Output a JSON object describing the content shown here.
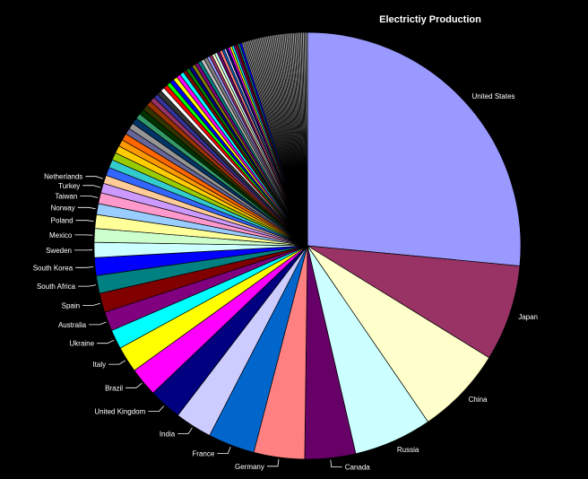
{
  "chart_data": {
    "type": "pie",
    "title": "Electrictiy Production",
    "start_angle_deg": 0,
    "direction": "clockwise",
    "slices": [
      {
        "name": "United States",
        "value": 25.5,
        "color": "#9999ff"
      },
      {
        "name": "Japan",
        "value": 7.0,
        "color": "#993366"
      },
      {
        "name": "China",
        "value": 6.4,
        "color": "#ffffcc"
      },
      {
        "name": "Russia",
        "value": 5.7,
        "color": "#ccffff"
      },
      {
        "name": "Canada",
        "value": 3.7,
        "color": "#660066"
      },
      {
        "name": "Germany",
        "value": 3.7,
        "color": "#ff8080"
      },
      {
        "name": "France",
        "value": 3.4,
        "color": "#0066cc"
      },
      {
        "name": "India",
        "value": 2.7,
        "color": "#ccccff"
      },
      {
        "name": "United Kingdom",
        "value": 2.4,
        "color": "#000080"
      },
      {
        "name": "Brazil",
        "value": 2.1,
        "color": "#ff00ff"
      },
      {
        "name": "Italy",
        "value": 1.9,
        "color": "#ffff00"
      },
      {
        "name": "Ukraine",
        "value": 1.4,
        "color": "#00ffff"
      },
      {
        "name": "Australia",
        "value": 1.4,
        "color": "#800080"
      },
      {
        "name": "Spain",
        "value": 1.4,
        "color": "#800000"
      },
      {
        "name": "South Africa",
        "value": 1.3,
        "color": "#008080"
      },
      {
        "name": "South Korea",
        "value": 1.3,
        "color": "#0000ff"
      },
      {
        "name": "Sweden",
        "value": 1.1,
        "color": "#ccffff"
      },
      {
        "name": "Mexico",
        "value": 1.0,
        "color": "#ccffcc"
      },
      {
        "name": "Poland",
        "value": 1.0,
        "color": "#ffff99"
      },
      {
        "name": "Norway",
        "value": 0.8,
        "color": "#99ccff"
      },
      {
        "name": "Taiwan",
        "value": 0.8,
        "color": "#ff99cc"
      },
      {
        "name": "Turkey",
        "value": 0.7,
        "color": "#cc99ff"
      },
      {
        "name": "Netherlands",
        "value": 0.6,
        "color": "#ffcc99"
      },
      {
        "name": "",
        "value": 0.6,
        "color": "#3366ff"
      },
      {
        "name": "",
        "value": 0.6,
        "color": "#33cccc"
      },
      {
        "name": "",
        "value": 0.55,
        "color": "#99cc00"
      },
      {
        "name": "",
        "value": 0.55,
        "color": "#ffcc00"
      },
      {
        "name": "",
        "value": 0.5,
        "color": "#ff9900"
      },
      {
        "name": "",
        "value": 0.5,
        "color": "#ff6600"
      },
      {
        "name": "",
        "value": 0.45,
        "color": "#666699"
      },
      {
        "name": "",
        "value": 0.45,
        "color": "#969696"
      },
      {
        "name": "",
        "value": 0.45,
        "color": "#003366"
      },
      {
        "name": "",
        "value": 0.4,
        "color": "#339966"
      },
      {
        "name": "",
        "value": 0.4,
        "color": "#003300"
      },
      {
        "name": "",
        "value": 0.4,
        "color": "#333300"
      },
      {
        "name": "",
        "value": 0.4,
        "color": "#993300"
      },
      {
        "name": "",
        "value": 0.35,
        "color": "#993366"
      },
      {
        "name": "",
        "value": 0.35,
        "color": "#333399"
      },
      {
        "name": "",
        "value": 0.35,
        "color": "#333333"
      },
      {
        "name": "",
        "value": 0.3,
        "color": "#ffffff"
      },
      {
        "name": "",
        "value": 0.3,
        "color": "#ff0000"
      },
      {
        "name": "",
        "value": 0.3,
        "color": "#00ff00"
      },
      {
        "name": "",
        "value": 0.3,
        "color": "#0000ff"
      },
      {
        "name": "",
        "value": 0.3,
        "color": "#ffff00"
      },
      {
        "name": "",
        "value": 0.3,
        "color": "#ff00ff"
      },
      {
        "name": "",
        "value": 0.3,
        "color": "#00ffff"
      },
      {
        "name": "",
        "value": 0.25,
        "color": "#800000"
      },
      {
        "name": "",
        "value": 0.25,
        "color": "#008000"
      },
      {
        "name": "",
        "value": 0.25,
        "color": "#000080"
      },
      {
        "name": "",
        "value": 0.25,
        "color": "#808000"
      },
      {
        "name": "",
        "value": 0.25,
        "color": "#800080"
      },
      {
        "name": "",
        "value": 0.25,
        "color": "#008080"
      },
      {
        "name": "",
        "value": 0.25,
        "color": "#c0c0c0"
      },
      {
        "name": "",
        "value": 0.25,
        "color": "#808080"
      },
      {
        "name": "",
        "value": 0.2,
        "color": "#9999ff"
      },
      {
        "name": "",
        "value": 0.2,
        "color": "#993366"
      },
      {
        "name": "",
        "value": 0.2,
        "color": "#ffffcc"
      },
      {
        "name": "",
        "value": 0.2,
        "color": "#ccffff"
      },
      {
        "name": "",
        "value": 0.2,
        "color": "#660066"
      },
      {
        "name": "",
        "value": 0.2,
        "color": "#ff8080"
      },
      {
        "name": "",
        "value": 0.15,
        "color": "#0066cc"
      },
      {
        "name": "",
        "value": 0.15,
        "color": "#ccccff"
      },
      {
        "name": "",
        "value": 0.15,
        "color": "#000080"
      },
      {
        "name": "",
        "value": 0.15,
        "color": "#ff00ff"
      },
      {
        "name": "",
        "value": 0.15,
        "color": "#ffff00"
      },
      {
        "name": "",
        "value": 0.15,
        "color": "#00ffff"
      },
      {
        "name": "",
        "value": 0.15,
        "color": "#800080"
      },
      {
        "name": "",
        "value": 0.15,
        "color": "#800000"
      },
      {
        "name": "",
        "value": 0.15,
        "color": "#008080"
      },
      {
        "name": "",
        "value": 0.15,
        "color": "#0000ff"
      },
      {
        "name": "",
        "value": 0.12,
        "color": "#a0a0a0"
      },
      {
        "name": "",
        "value": 0.12,
        "color": "#a0a0a0"
      },
      {
        "name": "",
        "value": 0.12,
        "color": "#a0a0a0"
      },
      {
        "name": "",
        "value": 0.12,
        "color": "#a0a0a0"
      },
      {
        "name": "",
        "value": 0.12,
        "color": "#a0a0a0"
      },
      {
        "name": "",
        "value": 0.12,
        "color": "#a0a0a0"
      },
      {
        "name": "",
        "value": 0.12,
        "color": "#a0a0a0"
      },
      {
        "name": "",
        "value": 0.12,
        "color": "#a0a0a0"
      },
      {
        "name": "",
        "value": 0.12,
        "color": "#a0a0a0"
      },
      {
        "name": "",
        "value": 0.12,
        "color": "#a0a0a0"
      },
      {
        "name": "",
        "value": 0.12,
        "color": "#a0a0a0"
      },
      {
        "name": "",
        "value": 0.12,
        "color": "#a0a0a0"
      },
      {
        "name": "",
        "value": 0.12,
        "color": "#a0a0a0"
      },
      {
        "name": "",
        "value": 0.12,
        "color": "#a0a0a0"
      },
      {
        "name": "",
        "value": 0.12,
        "color": "#a0a0a0"
      },
      {
        "name": "",
        "value": 0.12,
        "color": "#a0a0a0"
      },
      {
        "name": "",
        "value": 0.12,
        "color": "#a0a0a0"
      },
      {
        "name": "",
        "value": 0.12,
        "color": "#a0a0a0"
      },
      {
        "name": "",
        "value": 0.12,
        "color": "#a0a0a0"
      },
      {
        "name": "",
        "value": 0.12,
        "color": "#a0a0a0"
      },
      {
        "name": "",
        "value": 0.12,
        "color": "#a0a0a0"
      },
      {
        "name": "",
        "value": 0.12,
        "color": "#a0a0a0"
      },
      {
        "name": "",
        "value": 0.12,
        "color": "#a0a0a0"
      },
      {
        "name": "",
        "value": 0.12,
        "color": "#a0a0a0"
      },
      {
        "name": "",
        "value": 0.12,
        "color": "#a0a0a0"
      },
      {
        "name": "",
        "value": 0.12,
        "color": "#a0a0a0"
      },
      {
        "name": "",
        "value": 0.12,
        "color": "#a0a0a0"
      },
      {
        "name": "",
        "value": 0.12,
        "color": "#a0a0a0"
      },
      {
        "name": "",
        "value": 0.12,
        "color": "#a0a0a0"
      },
      {
        "name": "",
        "value": 0.12,
        "color": "#a0a0a0"
      },
      {
        "name": "",
        "value": 0.12,
        "color": "#a0a0a0"
      },
      {
        "name": "",
        "value": 0.12,
        "color": "#a0a0a0"
      },
      {
        "name": "",
        "value": 0.12,
        "color": "#a0a0a0"
      },
      {
        "name": "",
        "value": 0.12,
        "color": "#a0a0a0"
      },
      {
        "name": "",
        "value": 0.12,
        "color": "#a0a0a0"
      },
      {
        "name": "",
        "value": 0.12,
        "color": "#a0a0a0"
      },
      {
        "name": "",
        "value": 0.12,
        "color": "#a0a0a0"
      },
      {
        "name": "",
        "value": 0.12,
        "color": "#a0a0a0"
      },
      {
        "name": "",
        "value": 0.12,
        "color": "#a0a0a0"
      },
      {
        "name": "",
        "value": 0.12,
        "color": "#a0a0a0"
      }
    ]
  }
}
